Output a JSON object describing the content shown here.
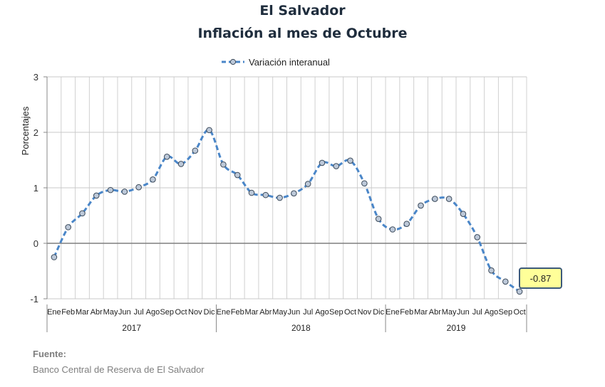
{
  "chart_data": {
    "type": "line",
    "title": "El Salvador",
    "subtitle": "Inflación al mes de Octubre",
    "ylabel": "Porcentajes",
    "xlabel": "",
    "ylim": [
      -1,
      3
    ],
    "yticks": [
      -1,
      0,
      1,
      2,
      3
    ],
    "grid": true,
    "legend_position": "top-center",
    "series": [
      {
        "name": "Variación interanual",
        "color": "#4a86c8",
        "values": [
          -0.25,
          0.29,
          0.54,
          0.86,
          0.96,
          0.93,
          1.01,
          1.15,
          1.56,
          1.43,
          1.67,
          2.04,
          1.42,
          1.23,
          0.91,
          0.87,
          0.82,
          0.9,
          1.07,
          1.45,
          1.39,
          1.49,
          1.08,
          0.44,
          0.25,
          0.35,
          0.68,
          0.8,
          0.8,
          0.53,
          0.11,
          -0.49,
          -0.69,
          -0.87
        ]
      }
    ],
    "months": [
      "Ene",
      "Feb",
      "Mar",
      "Abr",
      "May",
      "Jun",
      "Jul",
      "Ago",
      "Sep",
      "Oct",
      "Nov",
      "Dic",
      "Ene",
      "Feb",
      "Mar",
      "Abr",
      "May",
      "Jun",
      "Jul",
      "Ago",
      "Sep",
      "Oct",
      "Nov",
      "Dic",
      "Ene",
      "Feb",
      "Mar",
      "Abr",
      "May",
      "Jun",
      "Jul",
      "Ago",
      "Sep",
      "Oct"
    ],
    "years": [
      {
        "label": "2017",
        "count": 12
      },
      {
        "label": "2018",
        "count": 12
      },
      {
        "label": "2019",
        "count": 10
      }
    ],
    "annotation": {
      "text": "-0.87",
      "index": 33
    }
  },
  "source": {
    "label": "Fuente:",
    "text": "Banco Central de Reserva de El Salvador"
  }
}
